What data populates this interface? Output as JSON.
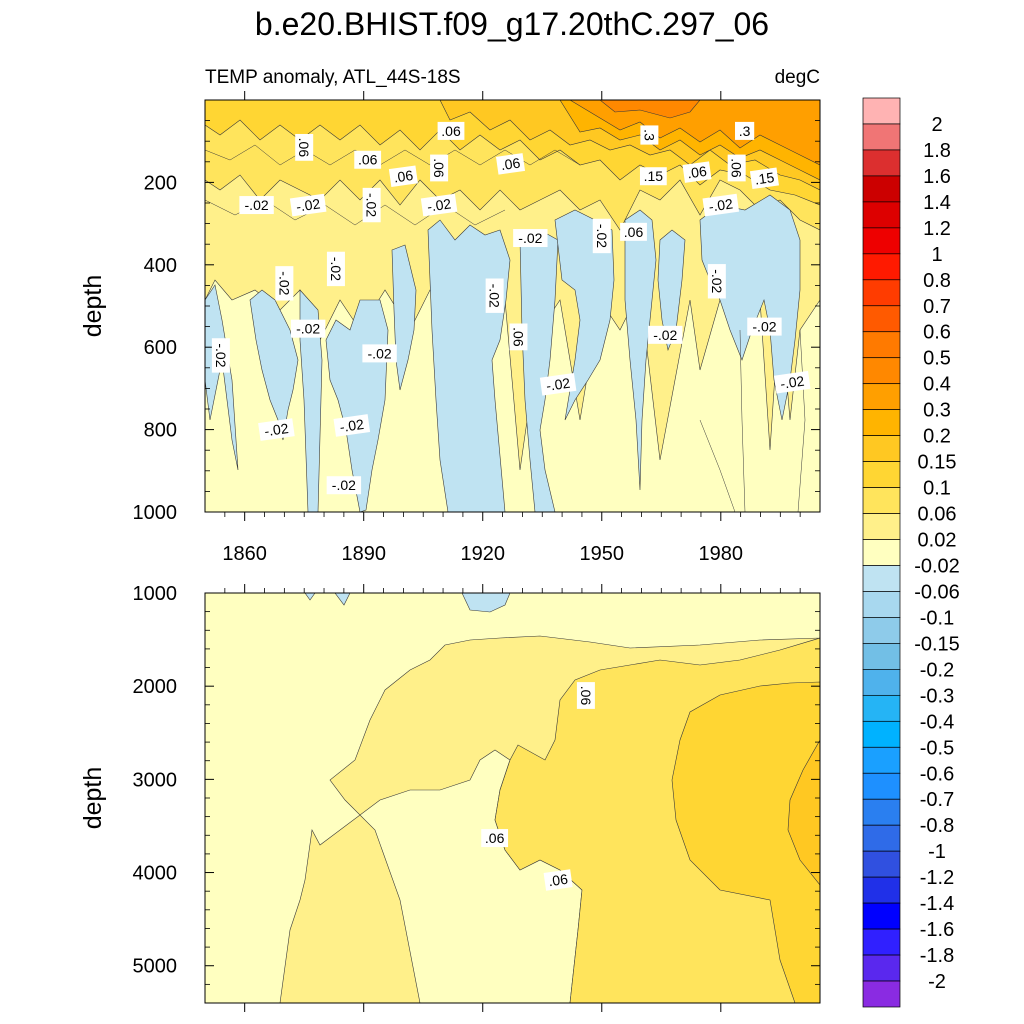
{
  "chart_data": [
    {
      "type": "contour",
      "panel": "upper",
      "title": "b.e20.BHIST.f09_g17.20thC.297_06",
      "subtitle_left": "TEMP anomaly, ATL_44S-18S",
      "subtitle_right": "degC",
      "xlabel": "",
      "ylabel": "depth",
      "xlim": [
        1850,
        2005
      ],
      "ylim": [
        1000,
        0
      ],
      "x_ticks": [
        1860,
        1890,
        1920,
        1950,
        1980
      ],
      "x_tick_labels": [
        "1860",
        "1890",
        "1920",
        "1950",
        "1980"
      ],
      "y_ticks": [
        200,
        400,
        600,
        800,
        1000
      ],
      "y_tick_labels": [
        "200",
        "400",
        "600",
        "800",
        "1000"
      ],
      "contour_labels": [
        {
          "text": "-.02",
          "x": 1854,
          "y": 620
        },
        {
          "text": "-.02",
          "x": 1863,
          "y": 255
        },
        {
          "text": "-.02",
          "x": 1868,
          "y": 800
        },
        {
          "text": "-.02",
          "x": 1870,
          "y": 445
        },
        {
          "text": "-.02",
          "x": 1876,
          "y": 555
        },
        {
          "text": "-.02",
          "x": 1876,
          "y": 255
        },
        {
          "text": "-.02",
          "x": 1883,
          "y": 410
        },
        {
          "text": "-.02",
          "x": 1885,
          "y": 935
        },
        {
          "text": "-.02",
          "x": 1887,
          "y": 790
        },
        {
          "text": "-.02",
          "x": 1892,
          "y": 255
        },
        {
          "text": "-.02",
          "x": 1894,
          "y": 615
        },
        {
          "text": "-.02",
          "x": 1909,
          "y": 255
        },
        {
          "text": "-.02",
          "x": 1923,
          "y": 475
        },
        {
          "text": "-.02",
          "x": 1932,
          "y": 335
        },
        {
          "text": "-.02",
          "x": 1939,
          "y": 690
        },
        {
          "text": "-.02",
          "x": 1950,
          "y": 330
        },
        {
          "text": "-.02",
          "x": 1966,
          "y": 570
        },
        {
          "text": "-.02",
          "x": 1980,
          "y": 255
        },
        {
          "text": "-.02",
          "x": 1979,
          "y": 440
        },
        {
          "text": "-.02",
          "x": 1991,
          "y": 550
        },
        {
          "text": "-.02",
          "x": 1998,
          "y": 685
        },
        {
          "text": ".06",
          "x": 1875,
          "y": 115
        },
        {
          "text": ".06",
          "x": 1891,
          "y": 145
        },
        {
          "text": ".06",
          "x": 1900,
          "y": 185
        },
        {
          "text": ".06",
          "x": 1909,
          "y": 165
        },
        {
          "text": ".06",
          "x": 1912,
          "y": 75
        },
        {
          "text": ".06",
          "x": 1927,
          "y": 155
        },
        {
          "text": ".06",
          "x": 1929,
          "y": 575
        },
        {
          "text": ".06",
          "x": 1958,
          "y": 320
        },
        {
          "text": ".06",
          "x": 1974,
          "y": 175
        },
        {
          "text": ".06",
          "x": 1984,
          "y": 165
        },
        {
          "text": ".15",
          "x": 1963,
          "y": 185
        },
        {
          "text": ".15",
          "x": 1991,
          "y": 190
        },
        {
          "text": ".3",
          "x": 1962,
          "y": 85
        },
        {
          "text": ".3",
          "x": 1986,
          "y": 75
        }
      ]
    },
    {
      "type": "contour",
      "panel": "lower",
      "xlabel": "",
      "ylabel": "depth",
      "xlim": [
        1850,
        2005
      ],
      "ylim": [
        5400,
        1000
      ],
      "x_ticks": [
        1860,
        1890,
        1920,
        1950,
        1980
      ],
      "y_ticks": [
        1000,
        2000,
        3000,
        4000,
        5000
      ],
      "y_tick_labels": [
        "1000",
        "2000",
        "3000",
        "4000",
        "5000"
      ],
      "contour_labels": [
        {
          "text": ".06",
          "x": 1946,
          "y": 2100
        },
        {
          "text": ".06",
          "x": 1923,
          "y": 3630
        },
        {
          "text": ".06",
          "x": 1939,
          "y": 4080
        }
      ]
    }
  ],
  "colorbar": {
    "levels": [
      "2",
      "1.8",
      "1.6",
      "1.4",
      "1.2",
      "1",
      "0.8",
      "0.7",
      "0.6",
      "0.5",
      "0.4",
      "0.3",
      "0.2",
      "0.15",
      "0.1",
      "0.06",
      "0.02",
      "-0.02",
      "-0.06",
      "-0.1",
      "-0.15",
      "-0.2",
      "-0.3",
      "-0.4",
      "-0.5",
      "-0.6",
      "-0.7",
      "-0.8",
      "-1",
      "-1.2",
      "-1.4",
      "-1.6",
      "-1.8",
      "-2"
    ],
    "colors": [
      "#ffb3b3",
      "#f07575",
      "#dc2f2f",
      "#cc0000",
      "#dd0000",
      "#ee0000",
      "#ff1a00",
      "#ff3c00",
      "#ff5a00",
      "#ff7a00",
      "#ff8800",
      "#ff9f00",
      "#ffb400",
      "#ffc822",
      "#ffd633",
      "#ffe45c",
      "#fff08a",
      "#ffffc0",
      "#bfe3f2",
      "#a8d8ef",
      "#8ecbea",
      "#72bfe6",
      "#4fb2ec",
      "#25b4f5",
      "#00b2ff",
      "#1aa0ff",
      "#1e90ff",
      "#2a7ff0",
      "#2f6be8",
      "#3050e0",
      "#2030e8",
      "#0000ff",
      "#3020ff",
      "#5a28ee",
      "#8a2be2"
    ]
  }
}
